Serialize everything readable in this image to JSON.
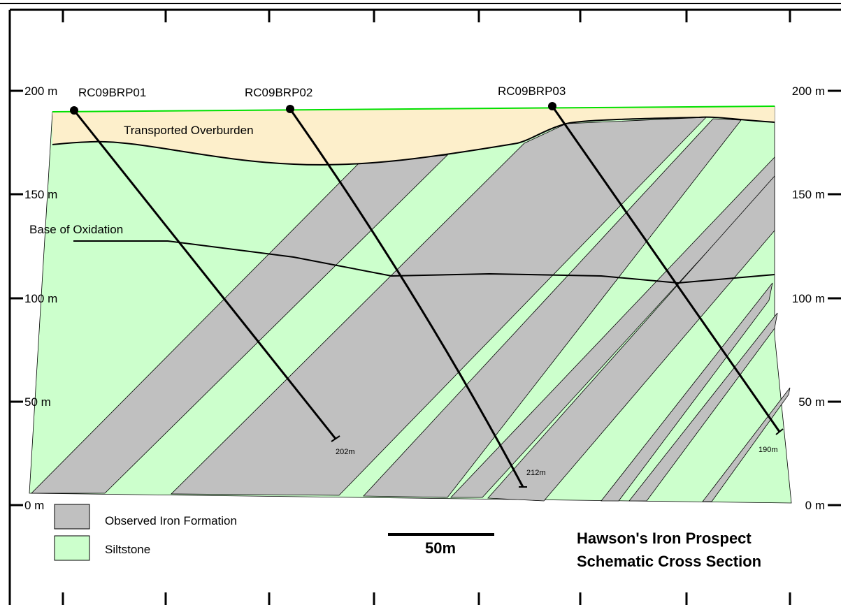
{
  "depth_axis": {
    "labels": [
      "200 m",
      "150 m",
      "100 m",
      "50 m",
      "0 m"
    ]
  },
  "drillholes": [
    {
      "name": "RC09BRP01",
      "depth": "202m"
    },
    {
      "name": "RC09BRP02",
      "depth": "212m"
    },
    {
      "name": "RC09BRP03",
      "depth": "190m"
    }
  ],
  "units": {
    "overburden": "Transported Overburden",
    "oxidation": "Base of Oxidation"
  },
  "legend": [
    {
      "label": "Observed Iron Formation"
    },
    {
      "label": "Siltstone"
    }
  ],
  "scale_bar": "50m",
  "title": {
    "line1": "Hawson's Iron Prospect",
    "line2": "Schematic Cross Section"
  }
}
